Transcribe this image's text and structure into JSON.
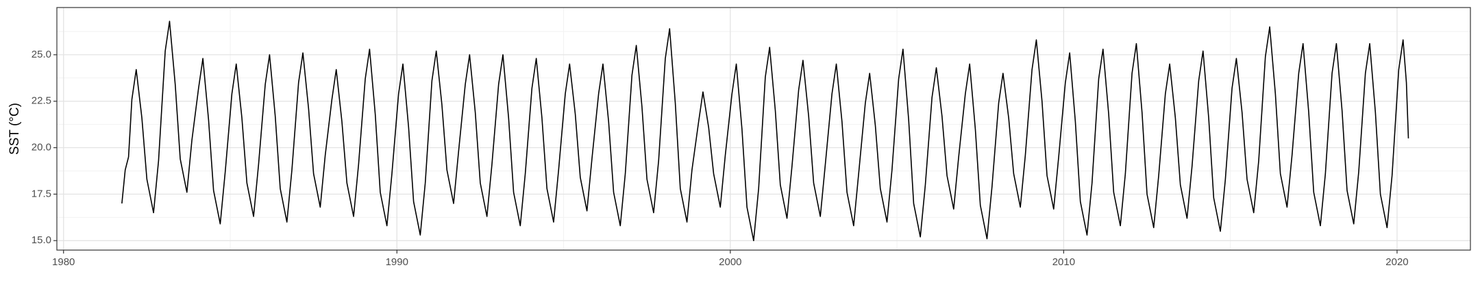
{
  "chart_data": {
    "type": "line",
    "y_label": "SST (°C)",
    "color": "#000000",
    "grid": true,
    "xlim": [
      1979.8,
      2022.2
    ],
    "xticks": [
      1980,
      1990,
      2000,
      2010,
      2020
    ],
    "x_minor_ticks": [
      1985,
      1995,
      2005,
      2015
    ],
    "ylim": [
      14.49,
      27.54
    ],
    "yticks": [
      {
        "value": 15,
        "label": "15.0"
      },
      17.5,
      {
        "value": 20,
        "label": "20.0"
      },
      22.5,
      {
        "value": 25,
        "label": "25.0"
      }
    ],
    "y_minor_ticks": [
      16.25,
      18.75,
      21.25,
      23.75,
      26.25
    ],
    "x": [
      1981.75,
      1981.85,
      1981.95,
      1982.05,
      1982.18,
      1982.35,
      1982.5,
      1982.7,
      1982.85,
      1983.05,
      1983.18,
      1983.35,
      1983.5,
      1983.7,
      1983.85,
      1984.05,
      1984.18,
      1984.35,
      1984.5,
      1984.7,
      1984.85,
      1985.05,
      1985.18,
      1985.35,
      1985.5,
      1985.7,
      1985.85,
      1986.05,
      1986.18,
      1986.35,
      1986.5,
      1986.7,
      1986.85,
      1987.05,
      1987.18,
      1987.35,
      1987.5,
      1987.7,
      1987.85,
      1988.05,
      1988.18,
      1988.35,
      1988.5,
      1988.7,
      1988.85,
      1989.05,
      1989.18,
      1989.35,
      1989.5,
      1989.7,
      1989.85,
      1990.05,
      1990.18,
      1990.35,
      1990.5,
      1990.7,
      1990.85,
      1991.05,
      1991.18,
      1991.35,
      1991.5,
      1991.7,
      1991.85,
      1992.05,
      1992.18,
      1992.35,
      1992.5,
      1992.7,
      1992.85,
      1993.05,
      1993.18,
      1993.35,
      1993.5,
      1993.7,
      1993.85,
      1994.05,
      1994.18,
      1994.35,
      1994.5,
      1994.7,
      1994.85,
      1995.05,
      1995.18,
      1995.35,
      1995.5,
      1995.7,
      1995.85,
      1996.05,
      1996.18,
      1996.35,
      1996.5,
      1996.7,
      1996.85,
      1997.05,
      1997.18,
      1997.35,
      1997.5,
      1997.7,
      1997.85,
      1998.05,
      1998.18,
      1998.35,
      1998.5,
      1998.7,
      1998.85,
      1999.05,
      1999.18,
      1999.35,
      1999.5,
      1999.7,
      1999.85,
      2000.05,
      2000.18,
      2000.35,
      2000.5,
      2000.7,
      2000.85,
      2001.05,
      2001.18,
      2001.35,
      2001.5,
      2001.7,
      2001.85,
      2002.05,
      2002.18,
      2002.35,
      2002.5,
      2002.7,
      2002.85,
      2003.05,
      2003.18,
      2003.35,
      2003.5,
      2003.7,
      2003.85,
      2004.05,
      2004.18,
      2004.35,
      2004.5,
      2004.7,
      2004.85,
      2005.05,
      2005.18,
      2005.35,
      2005.5,
      2005.7,
      2005.85,
      2006.05,
      2006.18,
      2006.35,
      2006.5,
      2006.7,
      2006.85,
      2007.05,
      2007.18,
      2007.35,
      2007.5,
      2007.7,
      2007.85,
      2008.05,
      2008.18,
      2008.35,
      2008.5,
      2008.7,
      2008.85,
      2009.05,
      2009.18,
      2009.35,
      2009.5,
      2009.7,
      2009.85,
      2010.05,
      2010.18,
      2010.35,
      2010.5,
      2010.7,
      2010.85,
      2011.05,
      2011.18,
      2011.35,
      2011.5,
      2011.7,
      2011.85,
      2012.05,
      2012.18,
      2012.35,
      2012.5,
      2012.7,
      2012.85,
      2013.05,
      2013.18,
      2013.35,
      2013.5,
      2013.7,
      2013.85,
      2014.05,
      2014.18,
      2014.35,
      2014.5,
      2014.7,
      2014.85,
      2015.05,
      2015.18,
      2015.35,
      2015.5,
      2015.7,
      2015.85,
      2016.05,
      2016.18,
      2016.35,
      2016.5,
      2016.7,
      2016.85,
      2017.05,
      2017.18,
      2017.35,
      2017.5,
      2017.7,
      2017.85,
      2018.05,
      2018.18,
      2018.35,
      2018.5,
      2018.7,
      2018.85,
      2019.05,
      2019.18,
      2019.35,
      2019.5,
      2019.7,
      2019.85,
      2020.05,
      2020.18,
      2020.28,
      2020.34
    ],
    "values": [
      17.0,
      18.8,
      19.5,
      22.6,
      24.2,
      21.6,
      18.3,
      16.5,
      19.3,
      25.2,
      26.8,
      23.4,
      19.4,
      17.6,
      20.4,
      23.2,
      24.8,
      21.5,
      17.7,
      15.9,
      18.7,
      22.9,
      24.5,
      21.6,
      18.1,
      16.3,
      19.1,
      23.4,
      25.0,
      21.7,
      17.8,
      16.0,
      18.8,
      23.5,
      25.1,
      22.1,
      18.6,
      16.8,
      19.6,
      22.6,
      24.2,
      21.4,
      18.1,
      16.3,
      19.1,
      23.7,
      25.3,
      21.8,
      17.6,
      15.8,
      18.6,
      22.9,
      24.5,
      21.1,
      17.1,
      15.3,
      18.1,
      23.6,
      25.2,
      22.3,
      18.8,
      17.0,
      19.8,
      23.4,
      25.0,
      21.9,
      18.1,
      16.3,
      19.1,
      23.4,
      25.0,
      21.6,
      17.6,
      15.8,
      18.6,
      23.2,
      24.8,
      21.6,
      17.8,
      16.0,
      18.8,
      22.9,
      24.5,
      21.8,
      18.4,
      16.6,
      19.4,
      22.9,
      24.5,
      21.4,
      17.6,
      15.8,
      18.6,
      23.9,
      25.5,
      22.2,
      18.3,
      16.5,
      19.3,
      24.8,
      26.4,
      22.4,
      17.8,
      16.0,
      18.8,
      21.4,
      23.0,
      21.1,
      18.6,
      16.8,
      19.6,
      22.9,
      24.5,
      21.0,
      16.8,
      15.0,
      17.8,
      23.8,
      25.4,
      22.0,
      18.0,
      16.2,
      19.0,
      23.1,
      24.7,
      21.7,
      18.1,
      16.3,
      19.1,
      22.9,
      24.5,
      21.4,
      17.6,
      15.8,
      18.6,
      22.4,
      24.0,
      21.2,
      17.8,
      16.0,
      18.8,
      23.7,
      25.3,
      21.5,
      17.0,
      15.2,
      18.0,
      22.7,
      24.3,
      21.7,
      18.5,
      16.7,
      19.5,
      22.9,
      24.5,
      21.0,
      16.9,
      15.1,
      17.9,
      22.4,
      24.0,
      21.6,
      18.6,
      16.8,
      19.6,
      24.2,
      25.8,
      22.5,
      18.5,
      16.7,
      19.5,
      23.5,
      25.1,
      21.4,
      17.1,
      15.3,
      18.1,
      23.7,
      25.3,
      21.8,
      17.6,
      15.8,
      18.6,
      24.0,
      25.6,
      21.9,
      17.5,
      15.7,
      18.5,
      22.9,
      24.5,
      21.6,
      18.0,
      16.2,
      19.0,
      23.6,
      25.2,
      21.6,
      17.3,
      15.5,
      18.3,
      23.2,
      24.8,
      21.9,
      18.3,
      16.5,
      19.3,
      24.9,
      26.5,
      22.9,
      18.6,
      16.8,
      19.6,
      24.0,
      25.6,
      21.9,
      17.6,
      15.8,
      18.6,
      24.0,
      25.6,
      22.0,
      17.7,
      15.9,
      18.7,
      24.0,
      25.6,
      21.9,
      17.5,
      15.7,
      18.5,
      24.2,
      25.8,
      23.5,
      20.5
    ]
  }
}
